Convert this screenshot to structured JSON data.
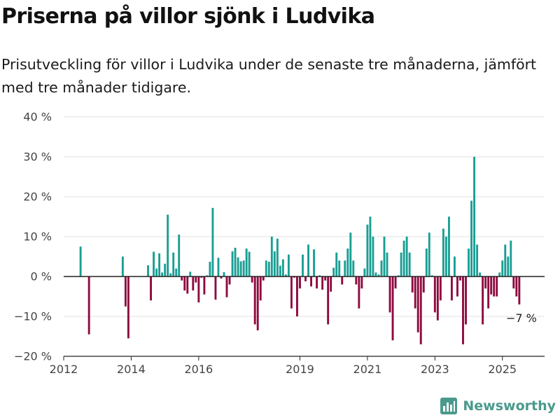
{
  "header": {
    "title": "Priserna på villor sjönk i Ludvika",
    "subtitle": "Prisutveckling för villor i Ludvika under de senaste tre månaderna, jämfört med tre månader tidigare."
  },
  "brand": {
    "name": "Newsworthy",
    "icon": "bar-chart-logo-icon"
  },
  "chart_data": {
    "type": "bar",
    "x_unit": "month",
    "ylim": [
      -20,
      40
    ],
    "xlim": [
      "2012-01",
      "2026-04"
    ],
    "y_ticks": [
      {
        "value": 40,
        "label": "40 %"
      },
      {
        "value": 30,
        "label": "30 %"
      },
      {
        "value": 20,
        "label": "20 %"
      },
      {
        "value": 10,
        "label": "10 %"
      },
      {
        "value": 0,
        "label": "0 %"
      },
      {
        "value": -10,
        "label": "−10 %"
      },
      {
        "value": -20,
        "label": "−20 %"
      }
    ],
    "x_ticks": [
      {
        "value": "2012-01",
        "label": "2012"
      },
      {
        "value": "2014-01",
        "label": "2014"
      },
      {
        "value": "2016-01",
        "label": "2016"
      },
      {
        "value": "2019-01",
        "label": "2019"
      },
      {
        "value": "2021-01",
        "label": "2021"
      },
      {
        "value": "2023-01",
        "label": "2023"
      },
      {
        "value": "2025-01",
        "label": "2025"
      }
    ],
    "grid": true,
    "colors": {
      "positive": "#1a9e94",
      "negative": "#8e0a3f",
      "grid": "#e2e2e2",
      "axis": "#222222"
    },
    "end_label": "−7 %",
    "points": [
      [
        "2012-07",
        7.5
      ],
      [
        "2012-10",
        -14.5
      ],
      [
        "2013-10",
        5.0
      ],
      [
        "2013-11",
        -7.5
      ],
      [
        "2013-12",
        -15.5
      ],
      [
        "2014-07",
        2.8
      ],
      [
        "2014-08",
        -6.0
      ],
      [
        "2014-09",
        6.2
      ],
      [
        "2014-10",
        2.0
      ],
      [
        "2014-11",
        5.8
      ],
      [
        "2014-12",
        1.0
      ],
      [
        "2015-01",
        3.2
      ],
      [
        "2015-02",
        15.5
      ],
      [
        "2015-03",
        0.8
      ],
      [
        "2015-04",
        6.0
      ],
      [
        "2015-05",
        2.0
      ],
      [
        "2015-06",
        10.5
      ],
      [
        "2015-07",
        -1.0
      ],
      [
        "2015-08",
        -3.5
      ],
      [
        "2015-09",
        -4.3
      ],
      [
        "2015-10",
        1.2
      ],
      [
        "2015-11",
        -3.5
      ],
      [
        "2015-12",
        -1.5
      ],
      [
        "2016-01",
        -6.5
      ],
      [
        "2016-02",
        -0.3
      ],
      [
        "2016-03",
        -4.5
      ],
      [
        "2016-04",
        0.3
      ],
      [
        "2016-05",
        3.7
      ],
      [
        "2016-06",
        17.2
      ],
      [
        "2016-07",
        -5.8
      ],
      [
        "2016-08",
        4.7
      ],
      [
        "2016-09",
        -0.5
      ],
      [
        "2016-10",
        1.1
      ],
      [
        "2016-11",
        -5.2
      ],
      [
        "2016-12",
        -2.0
      ],
      [
        "2017-01",
        6.3
      ],
      [
        "2017-02",
        7.2
      ],
      [
        "2017-03",
        4.8
      ],
      [
        "2017-04",
        3.8
      ],
      [
        "2017-05",
        4.0
      ],
      [
        "2017-06",
        7.0
      ],
      [
        "2017-07",
        6.2
      ],
      [
        "2017-08",
        -1.5
      ],
      [
        "2017-09",
        -12.0
      ],
      [
        "2017-10",
        -13.5
      ],
      [
        "2017-11",
        -6.0
      ],
      [
        "2017-12",
        -1.0
      ],
      [
        "2018-01",
        4.0
      ],
      [
        "2018-02",
        3.7
      ],
      [
        "2018-03",
        10.0
      ],
      [
        "2018-04",
        6.3
      ],
      [
        "2018-05",
        9.5
      ],
      [
        "2018-06",
        2.7
      ],
      [
        "2018-07",
        4.3
      ],
      [
        "2018-08",
        0.5
      ],
      [
        "2018-09",
        5.5
      ],
      [
        "2018-10",
        -8.0
      ],
      [
        "2018-11",
        -0.3
      ],
      [
        "2018-12",
        -10.0
      ],
      [
        "2019-01",
        -3.0
      ],
      [
        "2019-02",
        5.5
      ],
      [
        "2019-03",
        -1.2
      ],
      [
        "2019-04",
        8.0
      ],
      [
        "2019-05",
        -2.5
      ],
      [
        "2019-06",
        6.8
      ],
      [
        "2019-07",
        -3.0
      ],
      [
        "2019-08",
        0.3
      ],
      [
        "2019-09",
        -3.3
      ],
      [
        "2019-10",
        -1.0
      ],
      [
        "2019-11",
        -12.0
      ],
      [
        "2019-12",
        -3.8
      ],
      [
        "2020-01",
        2.2
      ],
      [
        "2020-02",
        6.0
      ],
      [
        "2020-03",
        4.0
      ],
      [
        "2020-04",
        -2.0
      ],
      [
        "2020-05",
        4.0
      ],
      [
        "2020-06",
        7.0
      ],
      [
        "2020-07",
        11.0
      ],
      [
        "2020-08",
        4.0
      ],
      [
        "2020-09",
        -2.0
      ],
      [
        "2020-10",
        -8.0
      ],
      [
        "2020-11",
        -3.0
      ],
      [
        "2020-12",
        2.0
      ],
      [
        "2021-01",
        13.0
      ],
      [
        "2021-02",
        15.0
      ],
      [
        "2021-03",
        10.0
      ],
      [
        "2021-04",
        1.0
      ],
      [
        "2021-05",
        0.5
      ],
      [
        "2021-06",
        4.0
      ],
      [
        "2021-07",
        10.0
      ],
      [
        "2021-08",
        6.0
      ],
      [
        "2021-09",
        -9.0
      ],
      [
        "2021-10",
        -16.0
      ],
      [
        "2021-11",
        -3.0
      ],
      [
        "2021-12",
        0.3
      ],
      [
        "2022-01",
        6.0
      ],
      [
        "2022-02",
        9.0
      ],
      [
        "2022-03",
        10.0
      ],
      [
        "2022-04",
        6.0
      ],
      [
        "2022-05",
        -4.0
      ],
      [
        "2022-06",
        -8.0
      ],
      [
        "2022-07",
        -14.0
      ],
      [
        "2022-08",
        -17.0
      ],
      [
        "2022-09",
        -4.0
      ],
      [
        "2022-10",
        7.0
      ],
      [
        "2022-11",
        11.0
      ],
      [
        "2022-12",
        0.3
      ],
      [
        "2023-01",
        -9.0
      ],
      [
        "2023-02",
        -11.0
      ],
      [
        "2023-03",
        -6.0
      ],
      [
        "2023-04",
        12.0
      ],
      [
        "2023-05",
        10.0
      ],
      [
        "2023-06",
        15.0
      ],
      [
        "2023-07",
        -6.0
      ],
      [
        "2023-08",
        5.0
      ],
      [
        "2023-09",
        -5.0
      ],
      [
        "2023-10",
        -1.0
      ],
      [
        "2023-11",
        -17.0
      ],
      [
        "2023-12",
        -12.0
      ],
      [
        "2024-01",
        7.0
      ],
      [
        "2024-02",
        19.0
      ],
      [
        "2024-03",
        30.0
      ],
      [
        "2024-04",
        8.0
      ],
      [
        "2024-05",
        1.0
      ],
      [
        "2024-06",
        -12.0
      ],
      [
        "2024-07",
        -3.0
      ],
      [
        "2024-08",
        -8.0
      ],
      [
        "2024-09",
        -4.5
      ],
      [
        "2024-10",
        -5.0
      ],
      [
        "2024-11",
        -5.0
      ],
      [
        "2024-12",
        1.0
      ],
      [
        "2025-01",
        4.0
      ],
      [
        "2025-02",
        8.0
      ],
      [
        "2025-03",
        5.0
      ],
      [
        "2025-04",
        9.0
      ],
      [
        "2025-05",
        -3.0
      ],
      [
        "2025-06",
        -5.0
      ],
      [
        "2025-07",
        -7.0
      ]
    ]
  }
}
